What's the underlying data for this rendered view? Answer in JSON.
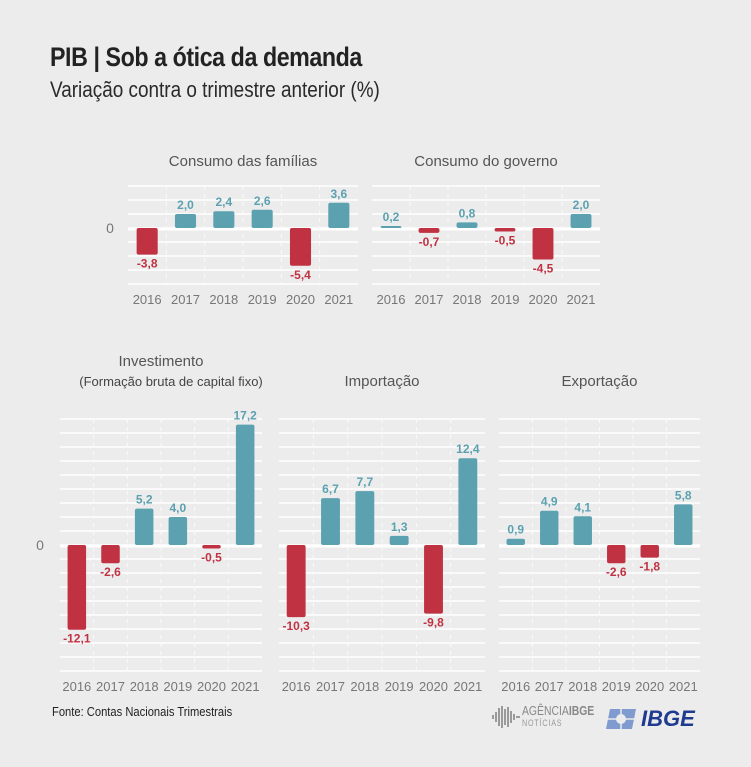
{
  "header": {
    "title": "PIB | Sob a ótica da demanda",
    "subtitle": "Variação contra o trimestre anterior (%)"
  },
  "footer": {
    "source": "Fonte: Contas Nacionais Trimestrais",
    "logo_agencia": "AGÊNCIA IBGE",
    "logo_agencia_bold": "IBGE",
    "logo_agencia_light": "AGÊNCIA",
    "logo_agencia_sub": "NOTÍCIAS",
    "logo_ibge": "IBGE"
  },
  "colors": {
    "positive": "#5ba1b0",
    "negative": "#c03242",
    "background": "#ececec",
    "grid": "#ffffff"
  },
  "chart_data": [
    {
      "type": "bar",
      "title": "Consumo das famílias",
      "subtitle": "",
      "categories": [
        "2016",
        "2017",
        "2018",
        "2019",
        "2020",
        "2021"
      ],
      "values": [
        -3.8,
        2.0,
        2.4,
        2.6,
        -5.4,
        3.6
      ],
      "labels": [
        "-3,8",
        "2,0",
        "2,4",
        "2,6",
        "-5,4",
        "3,6"
      ],
      "zero_label": "0",
      "ylim": [
        -6.3,
        6.1
      ],
      "grid": true
    },
    {
      "type": "bar",
      "title": "Consumo do governo",
      "subtitle": "",
      "categories": [
        "2016",
        "2017",
        "2018",
        "2019",
        "2020",
        "2021"
      ],
      "values": [
        0.2,
        -0.7,
        0.8,
        -0.5,
        -4.5,
        2.0
      ],
      "labels": [
        "0,2",
        "-0,7",
        "0,8",
        "-0,5",
        "-4,5",
        "2,0"
      ],
      "zero_label": "",
      "ylim": [
        -6.3,
        6.1
      ],
      "grid": true
    },
    {
      "type": "bar",
      "title": "Investimento",
      "subtitle": "(Formação bruta de capital fixo)",
      "categories": [
        "2016",
        "2017",
        "2018",
        "2019",
        "2020",
        "2021"
      ],
      "values": [
        -12.1,
        -2.6,
        5.2,
        4.0,
        -0.5,
        17.2
      ],
      "labels": [
        "-12,1",
        "-2,6",
        "5,2",
        "4,0",
        "-0,5",
        "17,2"
      ],
      "zero_label": "0",
      "ylim": [
        -18,
        18
      ],
      "grid": true
    },
    {
      "type": "bar",
      "title": "Importação",
      "subtitle": "",
      "categories": [
        "2016",
        "2017",
        "2018",
        "2019",
        "2020",
        "2021"
      ],
      "values": [
        -10.3,
        6.7,
        7.7,
        1.3,
        -9.8,
        12.4
      ],
      "labels": [
        "-10,3",
        "6,7",
        "7,7",
        "1,3",
        "-9,8",
        "12,4"
      ],
      "zero_label": "",
      "ylim": [
        -18,
        18
      ],
      "grid": true
    },
    {
      "type": "bar",
      "title": "Exportação",
      "subtitle": "",
      "categories": [
        "2016",
        "2017",
        "2018",
        "2019",
        "2020",
        "2021"
      ],
      "values": [
        0.9,
        4.9,
        4.1,
        -2.6,
        -1.8,
        5.8
      ],
      "labels": [
        "0,9",
        "4,9",
        "4,1",
        "-2,6",
        "-1,8",
        "5,8"
      ],
      "zero_label": "",
      "ylim": [
        -18,
        18
      ],
      "grid": true
    }
  ]
}
